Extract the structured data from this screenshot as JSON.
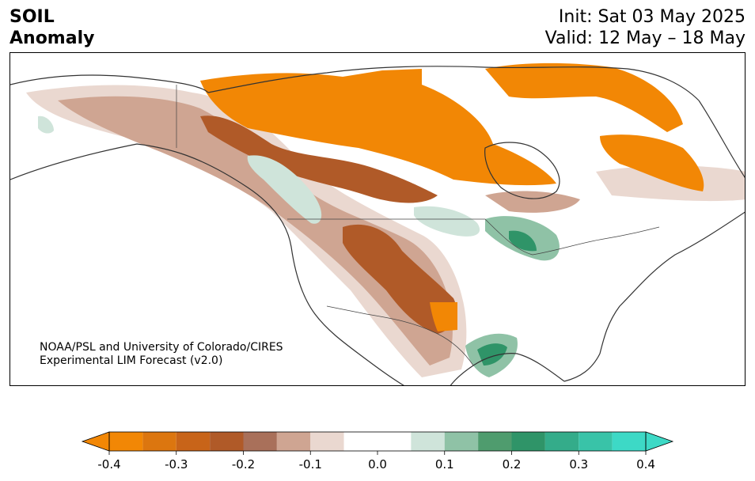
{
  "header": {
    "variable": "SOIL",
    "field": "Anomaly",
    "init": "Init: Sat 03 May 2025",
    "valid": "Valid: 12 May – 18 May"
  },
  "credit": {
    "line1": "NOAA/PSL and University of Colorado/CIRES",
    "line2": "Experimental LIM Forecast (v2.0)"
  },
  "colorbar": {
    "ticks": [
      "-0.4",
      "-0.3",
      "-0.2",
      "-0.1",
      "0.0",
      "0.1",
      "0.2",
      "0.3",
      "0.4"
    ],
    "levels": [
      -0.4,
      -0.35,
      -0.3,
      -0.25,
      -0.2,
      -0.15,
      -0.1,
      -0.05,
      0.05,
      0.1,
      0.15,
      0.2,
      0.25,
      0.3,
      0.35,
      0.4
    ],
    "colors": [
      "#f28705",
      "#dc760f",
      "#c86419",
      "#b05a28",
      "#a9705a",
      "#cfa592",
      "#ead8d0",
      "#ffffff",
      "#cfe4da",
      "#8fc2a6",
      "#4f9c6e",
      "#2f9468",
      "#34ac8a",
      "#39c3a8",
      "#3dd9c6"
    ],
    "under_color": "#f28705",
    "over_color": "#3dd9c6"
  },
  "palette": {
    "dry_strong": "#f28705",
    "dry_mid": "#b05a28",
    "dry_weak": "#cfa592",
    "dry_faint": "#ead8d0",
    "wet_faint": "#cfe4da",
    "wet_mid": "#8fc2a6",
    "wet_strong": "#2f9468"
  }
}
